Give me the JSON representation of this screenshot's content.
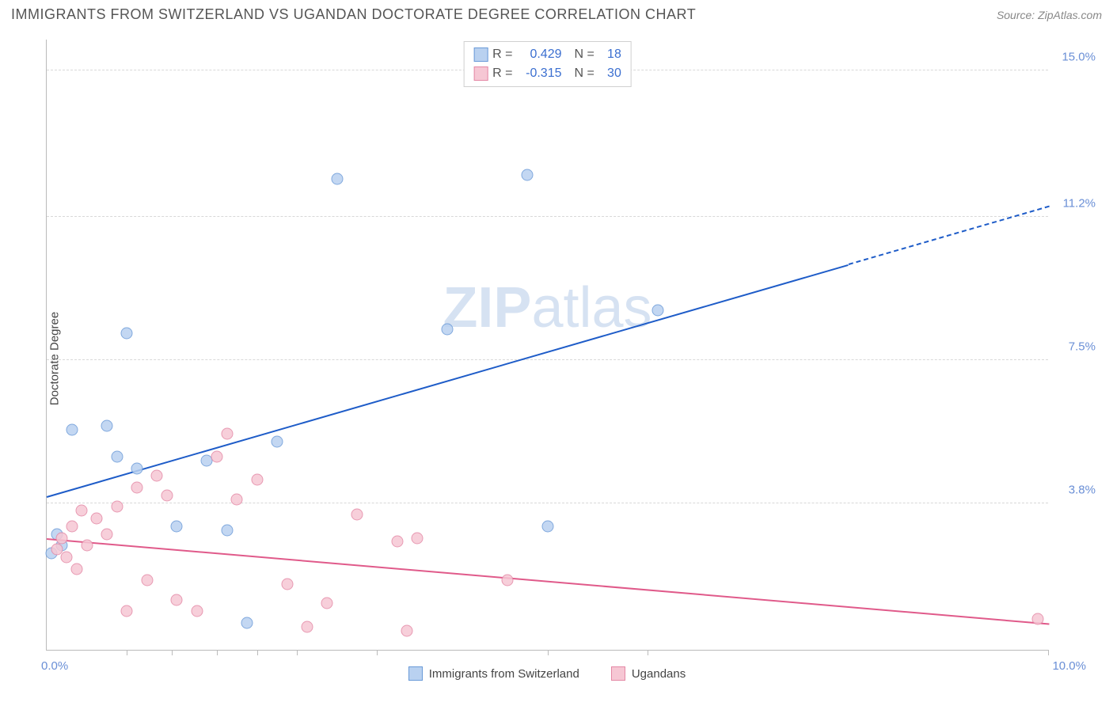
{
  "title": "IMMIGRANTS FROM SWITZERLAND VS UGANDAN DOCTORATE DEGREE CORRELATION CHART",
  "source_label": "Source: ZipAtlas.com",
  "ylabel": "Doctorate Degree",
  "watermark": "ZIPatlas",
  "chart": {
    "type": "scatter",
    "xlim": [
      0,
      10
    ],
    "ylim": [
      0,
      15.8
    ],
    "x_min_label": "0.0%",
    "x_max_label": "10.0%",
    "y_ticks": [
      {
        "v": 3.8,
        "label": "3.8%"
      },
      {
        "v": 7.5,
        "label": "7.5%"
      },
      {
        "v": 11.2,
        "label": "11.2%"
      },
      {
        "v": 15.0,
        "label": "15.0%"
      }
    ],
    "x_minor_ticks": [
      0.8,
      1.25,
      1.7,
      2.1,
      2.5,
      3.3,
      5.0,
      6.0,
      10.0
    ],
    "background_color": "#ffffff",
    "grid_color": "#d8d8d8",
    "series": [
      {
        "key": "swiss",
        "label": "Immigrants from Switzerland",
        "fill": "#b9d1f0",
        "stroke": "#6a9ad8",
        "marker_size": 15,
        "R": "0.429",
        "N": "18",
        "trend": {
          "color": "#1e5cc8",
          "width": 2,
          "x1": 0,
          "y1": 4.0,
          "x2": 8.0,
          "y2": 10.0,
          "dash_x2": 10.0,
          "dash_y2": 11.5
        },
        "points": [
          {
            "x": 0.25,
            "y": 5.7
          },
          {
            "x": 0.6,
            "y": 5.8
          },
          {
            "x": 0.8,
            "y": 8.2
          },
          {
            "x": 0.7,
            "y": 5.0
          },
          {
            "x": 0.9,
            "y": 4.7
          },
          {
            "x": 1.3,
            "y": 3.2
          },
          {
            "x": 1.6,
            "y": 4.9
          },
          {
            "x": 1.8,
            "y": 3.1
          },
          {
            "x": 2.0,
            "y": 0.7
          },
          {
            "x": 2.3,
            "y": 5.4
          },
          {
            "x": 2.9,
            "y": 12.2
          },
          {
            "x": 4.0,
            "y": 8.3
          },
          {
            "x": 4.8,
            "y": 12.3
          },
          {
            "x": 5.0,
            "y": 3.2
          },
          {
            "x": 6.1,
            "y": 8.8
          },
          {
            "x": 0.1,
            "y": 3.0
          },
          {
            "x": 0.15,
            "y": 2.7
          },
          {
            "x": 0.05,
            "y": 2.5
          }
        ]
      },
      {
        "key": "uganda",
        "label": "Ugandans",
        "fill": "#f6c7d4",
        "stroke": "#e488a5",
        "marker_size": 15,
        "R": "-0.315",
        "N": "30",
        "trend": {
          "color": "#e05a8a",
          "width": 2,
          "x1": 0,
          "y1": 2.9,
          "x2": 10.0,
          "y2": 0.7
        },
        "points": [
          {
            "x": 0.1,
            "y": 2.6
          },
          {
            "x": 0.15,
            "y": 2.9
          },
          {
            "x": 0.2,
            "y": 2.4
          },
          {
            "x": 0.25,
            "y": 3.2
          },
          {
            "x": 0.3,
            "y": 2.1
          },
          {
            "x": 0.35,
            "y": 3.6
          },
          {
            "x": 0.4,
            "y": 2.7
          },
          {
            "x": 0.5,
            "y": 3.4
          },
          {
            "x": 0.6,
            "y": 3.0
          },
          {
            "x": 0.7,
            "y": 3.7
          },
          {
            "x": 0.8,
            "y": 1.0
          },
          {
            "x": 0.9,
            "y": 4.2
          },
          {
            "x": 1.0,
            "y": 1.8
          },
          {
            "x": 1.1,
            "y": 4.5
          },
          {
            "x": 1.2,
            "y": 4.0
          },
          {
            "x": 1.3,
            "y": 1.3
          },
          {
            "x": 1.5,
            "y": 1.0
          },
          {
            "x": 1.7,
            "y": 5.0
          },
          {
            "x": 1.8,
            "y": 5.6
          },
          {
            "x": 1.9,
            "y": 3.9
          },
          {
            "x": 2.1,
            "y": 4.4
          },
          {
            "x": 2.4,
            "y": 1.7
          },
          {
            "x": 2.6,
            "y": 0.6
          },
          {
            "x": 2.8,
            "y": 1.2
          },
          {
            "x": 3.1,
            "y": 3.5
          },
          {
            "x": 3.5,
            "y": 2.8
          },
          {
            "x": 3.6,
            "y": 0.5
          },
          {
            "x": 3.7,
            "y": 2.9
          },
          {
            "x": 4.6,
            "y": 1.8
          },
          {
            "x": 9.9,
            "y": 0.8
          }
        ]
      }
    ]
  },
  "legend_top_labels": {
    "R": "R =",
    "N": "N ="
  }
}
